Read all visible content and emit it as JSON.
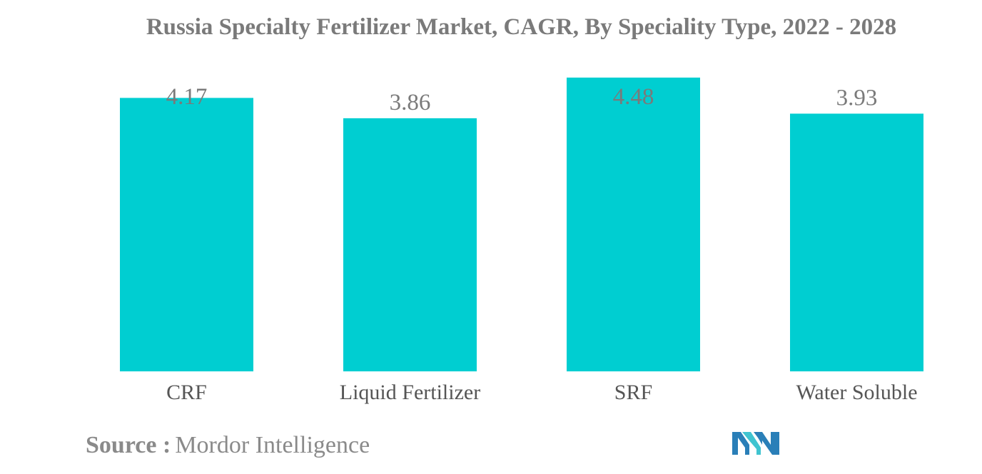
{
  "chart_data": {
    "type": "bar",
    "title": "Russia Specialty Fertilizer Market, CAGR, By Speciality Type, 2022 - 2028",
    "categories": [
      "CRF",
      "Liquid Fertilizer",
      "SRF",
      "Water Soluble"
    ],
    "values": [
      4.17,
      3.86,
      4.48,
      3.93
    ],
    "value_labels": [
      "4.17",
      "3.86",
      "4.48",
      "3.93"
    ],
    "xlabel": "",
    "ylabel": "",
    "ylim": [
      0,
      4.5
    ],
    "grid": false,
    "legend": "none",
    "bar_color": "#00ced1"
  },
  "source": {
    "label": "Source :",
    "text": "Mordor Intelligence"
  },
  "logo": {
    "icon": "mordor-intelligence-logo",
    "colors": [
      "#2a7fb8",
      "#40c4d0"
    ]
  }
}
